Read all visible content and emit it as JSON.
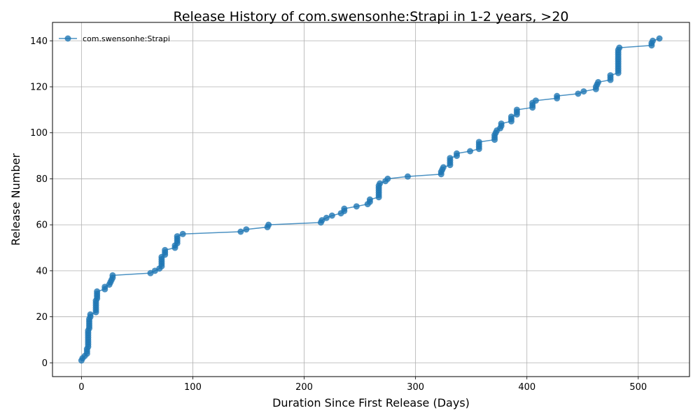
{
  "chart_data": {
    "type": "line",
    "title": "Release History of com.swensonhe:Strapi in 1-2 years, >20",
    "xlabel": "Duration Since First Release (Days)",
    "ylabel": "Release Number",
    "xlim": [
      -26,
      546
    ],
    "ylim": [
      -6,
      148
    ],
    "xticks": [
      0,
      100,
      200,
      300,
      400,
      500
    ],
    "yticks": [
      0,
      20,
      40,
      60,
      80,
      100,
      120,
      140
    ],
    "grid": true,
    "legend_position": "top-left",
    "colors": {
      "series": "#1f77b4",
      "grid": "#b0b0b0",
      "axes": "#000000"
    },
    "series": [
      {
        "name": "com.swensonhe:Strapi",
        "points": [
          [
            0,
            1
          ],
          [
            1,
            2
          ],
          [
            3,
            3
          ],
          [
            5,
            4
          ],
          [
            5,
            5
          ],
          [
            5,
            6
          ],
          [
            6,
            7
          ],
          [
            6,
            8
          ],
          [
            6,
            9
          ],
          [
            6,
            10
          ],
          [
            6,
            11
          ],
          [
            6,
            12
          ],
          [
            6,
            13
          ],
          [
            6,
            14
          ],
          [
            7,
            15
          ],
          [
            7,
            16
          ],
          [
            7,
            17
          ],
          [
            7,
            18
          ],
          [
            7,
            19
          ],
          [
            8,
            20
          ],
          [
            8,
            21
          ],
          [
            13,
            22
          ],
          [
            13,
            23
          ],
          [
            13,
            24
          ],
          [
            13,
            25
          ],
          [
            13,
            26
          ],
          [
            13,
            27
          ],
          [
            14,
            28
          ],
          [
            14,
            29
          ],
          [
            14,
            30
          ],
          [
            14,
            31
          ],
          [
            21,
            32
          ],
          [
            21,
            33
          ],
          [
            25,
            34
          ],
          [
            26,
            35
          ],
          [
            27,
            36
          ],
          [
            28,
            37
          ],
          [
            28,
            38
          ],
          [
            62,
            39
          ],
          [
            66,
            40
          ],
          [
            70,
            41
          ],
          [
            72,
            42
          ],
          [
            72,
            43
          ],
          [
            72,
            44
          ],
          [
            72,
            45
          ],
          [
            72,
            46
          ],
          [
            75,
            47
          ],
          [
            75,
            48
          ],
          [
            75,
            49
          ],
          [
            84,
            50
          ],
          [
            84,
            51
          ],
          [
            86,
            52
          ],
          [
            86,
            53
          ],
          [
            86,
            54
          ],
          [
            86,
            55
          ],
          [
            91,
            56
          ],
          [
            143,
            57
          ],
          [
            148,
            58
          ],
          [
            167,
            59
          ],
          [
            168,
            60
          ],
          [
            215,
            61
          ],
          [
            216,
            62
          ],
          [
            220,
            63
          ],
          [
            225,
            64
          ],
          [
            233,
            65
          ],
          [
            236,
            66
          ],
          [
            236,
            67
          ],
          [
            247,
            68
          ],
          [
            257,
            69
          ],
          [
            259,
            70
          ],
          [
            259,
            71
          ],
          [
            267,
            72
          ],
          [
            267,
            73
          ],
          [
            267,
            74
          ],
          [
            267,
            75
          ],
          [
            267,
            76
          ],
          [
            267,
            77
          ],
          [
            268,
            78
          ],
          [
            273,
            79
          ],
          [
            275,
            80
          ],
          [
            293,
            81
          ],
          [
            323,
            82
          ],
          [
            323,
            83
          ],
          [
            324,
            84
          ],
          [
            325,
            85
          ],
          [
            331,
            86
          ],
          [
            331,
            87
          ],
          [
            331,
            88
          ],
          [
            331,
            89
          ],
          [
            337,
            90
          ],
          [
            337,
            91
          ],
          [
            349,
            92
          ],
          [
            357,
            93
          ],
          [
            357,
            94
          ],
          [
            357,
            95
          ],
          [
            357,
            96
          ],
          [
            371,
            97
          ],
          [
            371,
            98
          ],
          [
            371,
            99
          ],
          [
            372,
            100
          ],
          [
            373,
            101
          ],
          [
            376,
            102
          ],
          [
            377,
            103
          ],
          [
            377,
            104
          ],
          [
            386,
            105
          ],
          [
            386,
            106
          ],
          [
            386,
            107
          ],
          [
            391,
            108
          ],
          [
            391,
            109
          ],
          [
            391,
            110
          ],
          [
            405,
            111
          ],
          [
            405,
            112
          ],
          [
            405,
            113
          ],
          [
            408,
            114
          ],
          [
            427,
            115
          ],
          [
            427,
            116
          ],
          [
            446,
            117
          ],
          [
            451,
            118
          ],
          [
            462,
            119
          ],
          [
            462,
            120
          ],
          [
            463,
            121
          ],
          [
            464,
            122
          ],
          [
            475,
            123
          ],
          [
            475,
            124
          ],
          [
            475,
            125
          ],
          [
            482,
            126
          ],
          [
            482,
            127
          ],
          [
            482,
            128
          ],
          [
            482,
            129
          ],
          [
            482,
            130
          ],
          [
            482,
            131
          ],
          [
            482,
            132
          ],
          [
            482,
            133
          ],
          [
            482,
            134
          ],
          [
            482,
            135
          ],
          [
            482,
            136
          ],
          [
            483,
            137
          ],
          [
            512,
            138
          ],
          [
            512,
            139
          ],
          [
            513,
            140
          ],
          [
            519,
            141
          ]
        ]
      }
    ]
  }
}
